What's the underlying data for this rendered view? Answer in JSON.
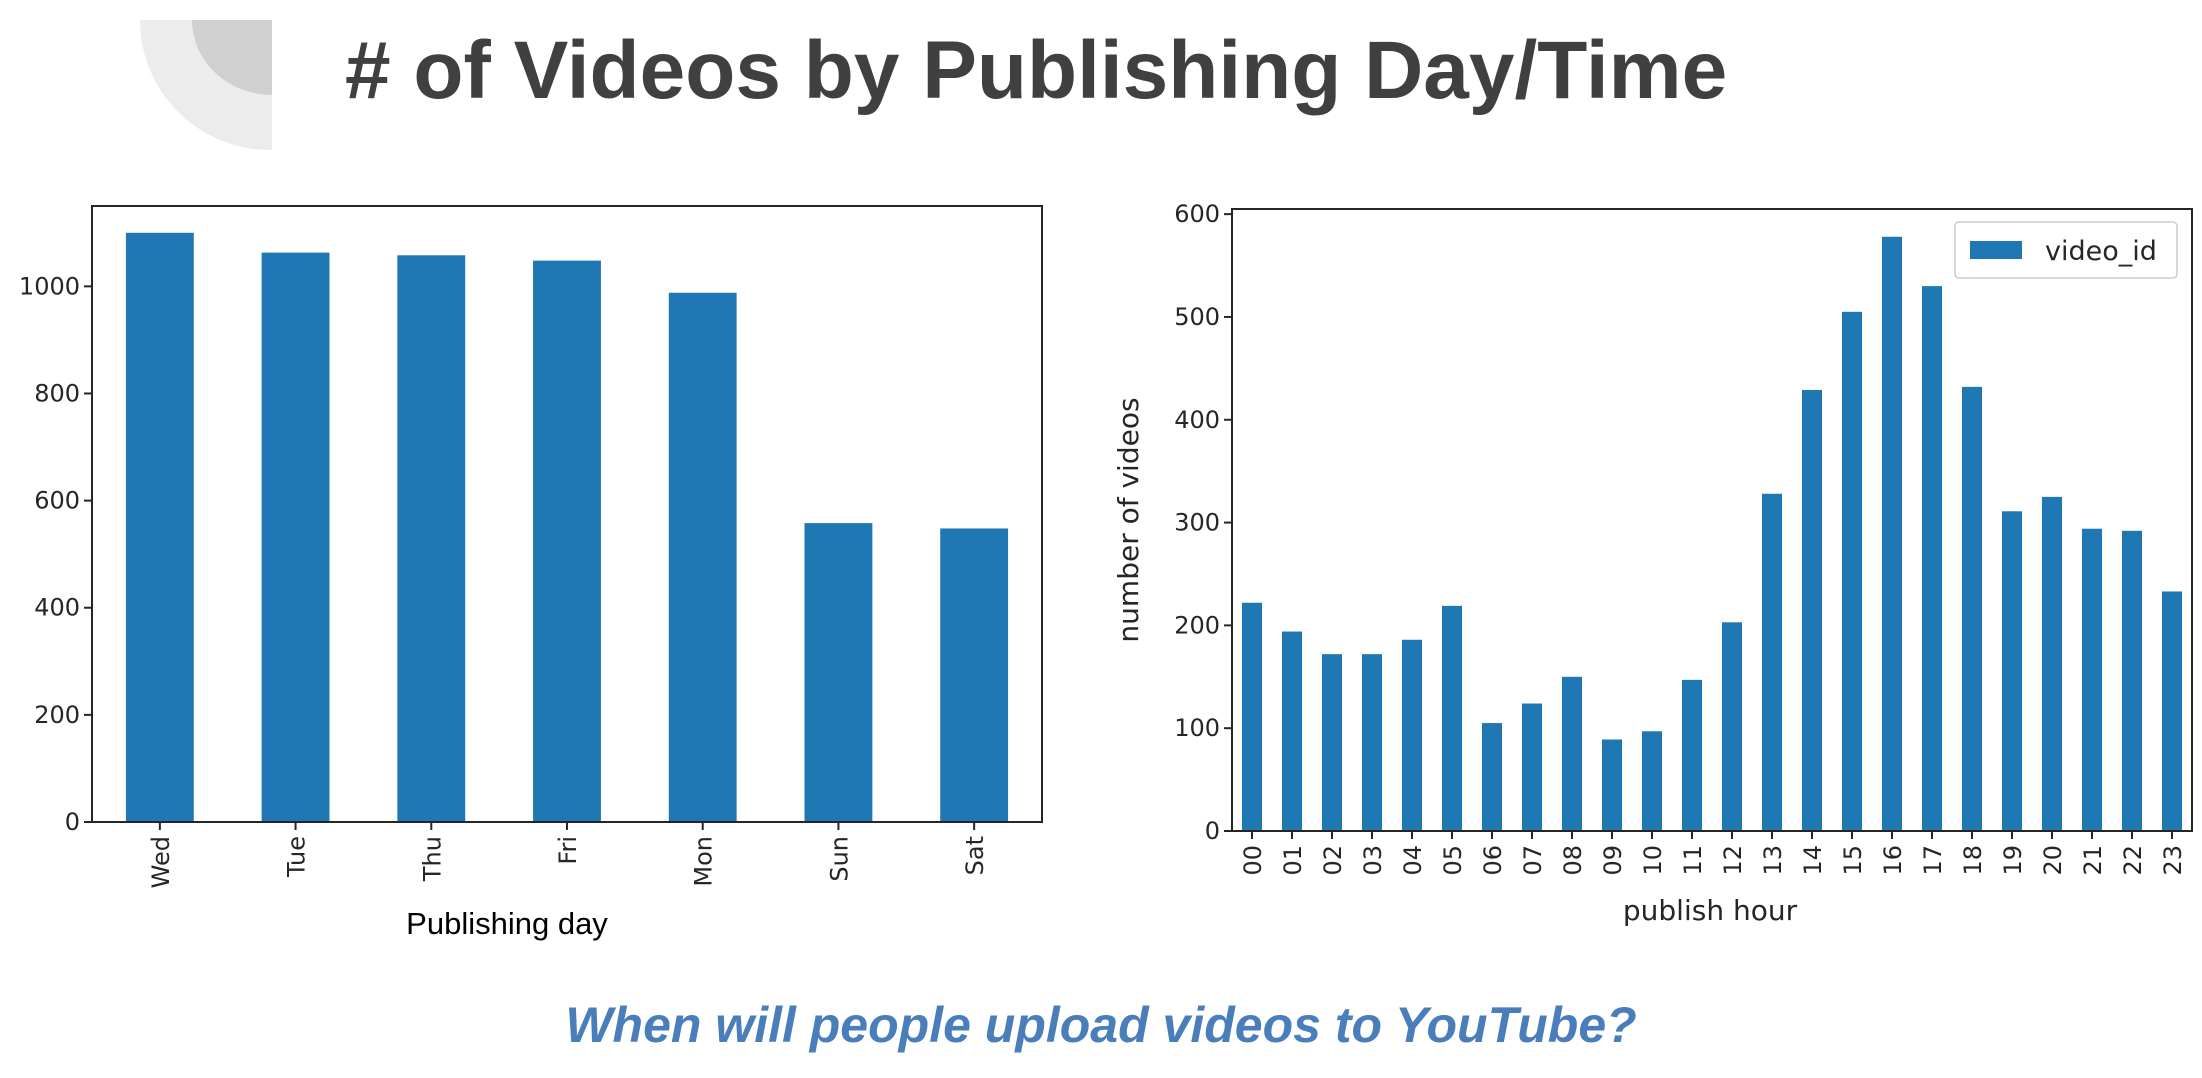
{
  "slide": {
    "title": "# of Videos by Publishing Day/Time",
    "subtitle": "When will people upload videos to YouTube?"
  },
  "colors": {
    "bar": "#1f77b4",
    "title": "#404040",
    "subtitle": "#4a7ebb",
    "decoration_light": "#ececec",
    "decoration_dark": "#d0d0d0"
  },
  "chart_data": [
    {
      "type": "bar",
      "title": "",
      "xlabel": "Publishing day",
      "ylabel": "",
      "categories": [
        "Wed",
        "Tue",
        "Thu",
        "Fri",
        "Mon",
        "Sun",
        "Sat"
      ],
      "values": [
        1100,
        1063,
        1058,
        1048,
        988,
        558,
        548
      ],
      "ylim": [
        0,
        1150
      ],
      "yticks": [
        0,
        200,
        400,
        600,
        800,
        1000
      ],
      "grid": false,
      "legend": null
    },
    {
      "type": "bar",
      "title": "",
      "xlabel": "publish hour",
      "ylabel": "number of videos",
      "categories": [
        "00",
        "01",
        "02",
        "03",
        "04",
        "05",
        "06",
        "07",
        "08",
        "09",
        "10",
        "11",
        "12",
        "13",
        "14",
        "15",
        "16",
        "17",
        "18",
        "19",
        "20",
        "21",
        "22",
        "23"
      ],
      "series": [
        {
          "name": "video_id",
          "values": [
            222,
            194,
            172,
            172,
            186,
            219,
            105,
            124,
            150,
            89,
            97,
            147,
            203,
            328,
            429,
            505,
            578,
            530,
            432,
            311,
            325,
            294,
            292,
            233
          ]
        }
      ],
      "ylim": [
        0,
        605
      ],
      "yticks": [
        0,
        100,
        200,
        300,
        400,
        500,
        600
      ],
      "grid": false,
      "legend": "top-right"
    }
  ]
}
